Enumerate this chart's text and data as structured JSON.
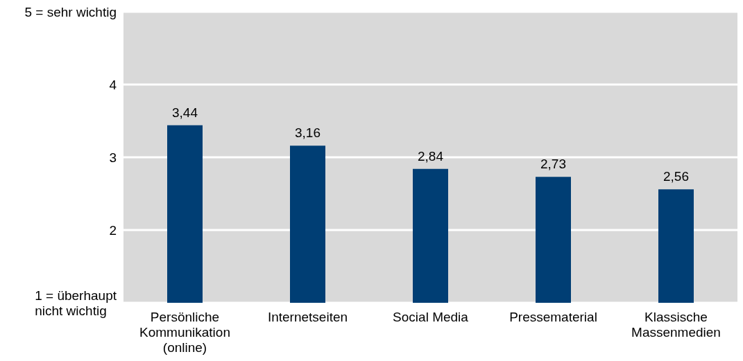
{
  "chart_data": {
    "type": "bar",
    "categories": [
      "Persönliche Kommunikation (online)",
      "Internetseiten",
      "Social Media",
      "Pressematerial",
      "Klassische Massenmedien"
    ],
    "values": [
      3.44,
      3.16,
      2.84,
      2.73,
      2.56
    ],
    "value_labels": [
      "3,44",
      "3,16",
      "2,84",
      "2,73",
      "2,56"
    ],
    "color": "#003e74",
    "ylim": [
      1,
      5
    ],
    "yticks": [
      {
        "value": 1,
        "label": "1 = überhaupt nicht wichtig"
      },
      2,
      3,
      4,
      {
        "value": 5,
        "label": "5 = sehr wichtig"
      }
    ],
    "grid": "y"
  }
}
